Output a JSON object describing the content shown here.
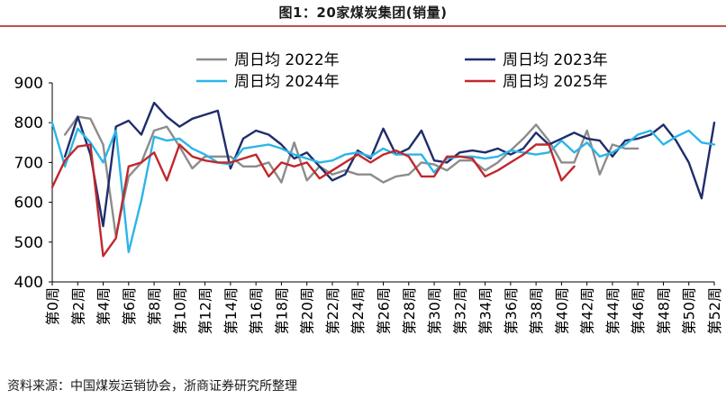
{
  "chart_data": {
    "type": "line",
    "title": "图1：20家煤炭集团(销量)",
    "xlabel": "",
    "ylabel": "",
    "ylim": [
      400,
      900
    ],
    "yticks": [
      400,
      500,
      600,
      700,
      800,
      900
    ],
    "xmax": 52,
    "x_tick_labels": [
      "第0周",
      "第2周",
      "第4周",
      "第6周",
      "第8周",
      "第10周",
      "第12周",
      "第14周",
      "第16周",
      "第18周",
      "第20周",
      "第22周",
      "第24周",
      "第26周",
      "第28周",
      "第30周",
      "第32周",
      "第34周",
      "第36周",
      "第38周",
      "第40周",
      "第42周",
      "第44周",
      "第46周",
      "第48周",
      "第50周",
      "第52周"
    ],
    "x_tick_values": [
      0,
      2,
      4,
      6,
      8,
      10,
      12,
      14,
      16,
      18,
      20,
      22,
      24,
      26,
      28,
      30,
      32,
      34,
      36,
      38,
      40,
      42,
      44,
      46,
      48,
      50,
      52
    ],
    "series": [
      {
        "name": "周日均  2022年",
        "color": "#8c8c8c",
        "x": [
          1,
          2,
          3,
          4,
          5,
          6,
          7,
          8,
          9,
          10,
          11,
          12,
          13,
          14,
          15,
          16,
          17,
          18,
          19,
          20,
          21,
          22,
          23,
          24,
          25,
          26,
          27,
          28,
          29,
          30,
          31,
          32,
          33,
          34,
          35,
          36,
          37,
          38,
          39,
          40,
          41,
          42,
          43,
          44,
          45,
          46
        ],
        "values": [
          770,
          815,
          810,
          745,
          515,
          665,
          700,
          780,
          790,
          740,
          685,
          715,
          715,
          715,
          690,
          690,
          700,
          650,
          750,
          655,
          690,
          670,
          680,
          670,
          670,
          650,
          665,
          670,
          700,
          695,
          680,
          705,
          705,
          680,
          700,
          730,
          760,
          795,
          755,
          700,
          700,
          780,
          670,
          745,
          735,
          735
        ]
      },
      {
        "name": "周日均  2023年",
        "color": "#1f2d6b",
        "x": [
          1,
          2,
          3,
          4,
          5,
          6,
          7,
          8,
          9,
          10,
          11,
          12,
          13,
          14,
          15,
          16,
          17,
          18,
          19,
          20,
          21,
          22,
          23,
          24,
          25,
          26,
          27,
          28,
          29,
          30,
          31,
          32,
          33,
          34,
          35,
          36,
          37,
          38,
          39,
          40,
          41,
          42,
          43,
          44,
          45,
          46,
          47,
          48,
          49,
          50,
          51,
          52
        ],
        "values": [
          715,
          815,
          720,
          540,
          790,
          805,
          770,
          850,
          815,
          790,
          810,
          820,
          830,
          685,
          760,
          780,
          770,
          745,
          710,
          725,
          690,
          655,
          670,
          730,
          710,
          785,
          720,
          735,
          780,
          705,
          700,
          725,
          730,
          725,
          735,
          720,
          735,
          775,
          745,
          760,
          775,
          760,
          755,
          715,
          755,
          760,
          770,
          795,
          755,
          700,
          610,
          800
        ]
      },
      {
        "name": "周日均  2024年",
        "color": "#2bb5e8",
        "x": [
          0,
          1,
          2,
          3,
          4,
          5,
          6,
          7,
          8,
          9,
          10,
          11,
          12,
          13,
          14,
          15,
          16,
          17,
          18,
          19,
          20,
          21,
          22,
          23,
          24,
          25,
          26,
          27,
          28,
          29,
          30,
          31,
          32,
          33,
          34,
          35,
          36,
          37,
          38,
          39,
          40,
          41,
          42,
          43,
          44,
          45,
          46,
          47,
          48,
          49,
          50,
          51,
          52
        ],
        "values": [
          800,
          690,
          785,
          750,
          700,
          780,
          475,
          605,
          765,
          755,
          760,
          735,
          720,
          700,
          695,
          735,
          740,
          745,
          735,
          720,
          710,
          700,
          705,
          720,
          725,
          715,
          735,
          720,
          720,
          720,
          675,
          710,
          715,
          715,
          710,
          715,
          730,
          725,
          720,
          725,
          755,
          725,
          750,
          715,
          725,
          745,
          770,
          780,
          745,
          765,
          780,
          750,
          745
        ]
      },
      {
        "name": "周日均  2025年",
        "color": "#c0282d",
        "x": [
          0,
          1,
          2,
          3,
          4,
          5,
          6,
          7,
          8,
          9,
          10,
          11,
          12,
          13,
          14,
          15,
          16,
          17,
          18,
          19,
          20,
          21,
          22,
          23,
          24,
          25,
          26,
          27,
          28,
          29,
          30,
          31,
          32,
          33,
          34,
          35,
          36,
          37,
          38,
          39,
          40,
          41
        ],
        "values": [
          638,
          705,
          740,
          745,
          465,
          510,
          690,
          700,
          725,
          655,
          745,
          715,
          705,
          700,
          700,
          710,
          720,
          665,
          700,
          690,
          700,
          660,
          680,
          700,
          720,
          700,
          720,
          730,
          715,
          665,
          665,
          715,
          715,
          710,
          665,
          680,
          700,
          720,
          745,
          745,
          655,
          690
        ]
      }
    ],
    "legend": "top-center"
  },
  "source_text": "资料来源：中国煤炭运销协会，浙商证券研究所整理"
}
